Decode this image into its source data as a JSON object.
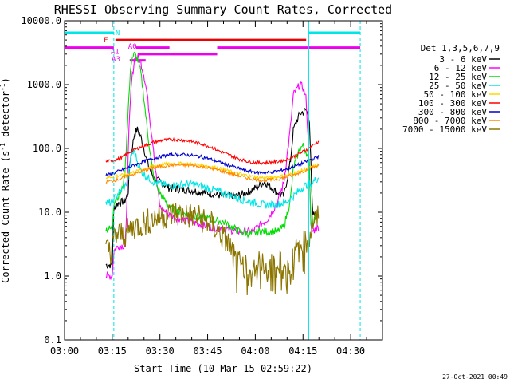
{
  "chart_data": {
    "type": "line",
    "title": "RHESSI Observing Summary Count Rates, Corrected",
    "xlabel": "Start Time (10-Mar-15 02:59:22)",
    "ylabel_parts": [
      "Corrected Count Rate (s",
      "-1",
      " detector",
      "-1",
      ")"
    ],
    "yscale": "log",
    "ylim": [
      0.1,
      10000
    ],
    "yticks": [
      {
        "value": 10000,
        "label": "10000.0"
      },
      {
        "value": 1000,
        "label": "1000.0"
      },
      {
        "value": 100,
        "label": "100.0"
      },
      {
        "value": 10,
        "label": "10.0"
      },
      {
        "value": 1,
        "label": "1.0"
      },
      {
        "value": 0.1,
        "label": "0.1"
      }
    ],
    "xlim_minutes": [
      0,
      100
    ],
    "xticks": [
      {
        "value": 0,
        "label": "03:00"
      },
      {
        "value": 15,
        "label": "03:15"
      },
      {
        "value": 30,
        "label": "03:30"
      },
      {
        "value": 45,
        "label": "03:45"
      },
      {
        "value": 60,
        "label": "04:00"
      },
      {
        "value": 75,
        "label": "04:15"
      },
      {
        "value": 90,
        "label": "04:30"
      }
    ],
    "legend_title": "Det 1,3,5,6,7,9",
    "legend_position": "right",
    "series": [
      {
        "name": "3 - 6 keV",
        "color": "#000000",
        "x": [
          13,
          15,
          15.5,
          17,
          19,
          20,
          20.5,
          22,
          23,
          24,
          25,
          26,
          28,
          30,
          33,
          36,
          40,
          45,
          50,
          54,
          57,
          60,
          63,
          66,
          69,
          71,
          72,
          74,
          76,
          77,
          78,
          80
        ],
        "values": [
          1.5,
          1.5,
          12,
          14,
          15,
          20,
          60,
          170,
          200,
          150,
          100,
          60,
          35,
          30,
          24,
          23,
          22,
          20,
          18,
          18,
          20,
          24,
          30,
          22,
          18,
          60,
          200,
          350,
          400,
          300,
          9,
          10
        ]
      },
      {
        "name": "6 - 12 keV",
        "color": "#ff00ff",
        "x": [
          13,
          15,
          15.5,
          17,
          19,
          19.5,
          20,
          21,
          22,
          23,
          24,
          25,
          26,
          27,
          28,
          29,
          30,
          33,
          36,
          40,
          45,
          50,
          55,
          59,
          61,
          64,
          67,
          69,
          71,
          72,
          74,
          75,
          76,
          77,
          77.5,
          78,
          80
        ],
        "values": [
          1,
          1,
          2.5,
          3,
          3,
          7,
          100,
          1000,
          2500,
          2700,
          2200,
          1400,
          700,
          250,
          100,
          30,
          12,
          9,
          8,
          7,
          6,
          5.5,
          5,
          5,
          6,
          8,
          14,
          30,
          200,
          700,
          1000,
          900,
          600,
          50,
          5,
          5,
          6
        ]
      },
      {
        "name": "12 - 25 keV",
        "color": "#00dd00",
        "x": [
          13,
          15,
          15.5,
          17,
          18,
          19,
          20,
          21,
          22,
          23,
          24,
          25,
          26,
          27,
          28,
          30,
          33,
          36,
          40,
          45,
          50,
          55,
          59,
          61,
          64,
          67,
          69,
          71,
          72,
          74,
          75,
          76,
          77,
          77.5,
          78,
          80
        ],
        "values": [
          5.5,
          5.5,
          15,
          18,
          22,
          40,
          400,
          2500,
          3000,
          2500,
          1500,
          600,
          200,
          80,
          35,
          20,
          12,
          10,
          9,
          8,
          7,
          5,
          4.5,
          5,
          5,
          5,
          6,
          15,
          50,
          100,
          110,
          90,
          60,
          6,
          7,
          10
        ]
      },
      {
        "name": "25 - 50 keV",
        "color": "#00e5e5",
        "x": [
          13,
          15,
          15.5,
          17,
          19,
          20,
          21,
          22,
          23,
          24,
          25,
          26,
          27,
          28,
          30,
          33,
          36,
          40,
          45,
          50,
          55,
          60,
          63,
          66,
          69,
          71,
          73,
          75,
          77,
          77.5,
          78,
          80
        ],
        "values": [
          14,
          14,
          16,
          20,
          25,
          35,
          80,
          90,
          60,
          45,
          40,
          35,
          33,
          30,
          28,
          26,
          27,
          28,
          24,
          20,
          16,
          14,
          13,
          13,
          14,
          16,
          20,
          25,
          28,
          25,
          30,
          35
        ]
      },
      {
        "name": "50 - 100 keV",
        "color": "#ffd700",
        "x": [
          13,
          15,
          16,
          18,
          20,
          22,
          25,
          28,
          31,
          34,
          37,
          40,
          43,
          46,
          49,
          52,
          55,
          58,
          61,
          64,
          67,
          70,
          73,
          76,
          80
        ],
        "values": [
          35,
          36,
          37,
          38,
          40,
          43,
          48,
          53,
          56,
          58,
          58,
          57,
          55,
          52,
          48,
          44,
          40,
          37,
          35,
          35,
          36,
          38,
          42,
          48,
          55
        ]
      },
      {
        "name": "100 - 300 keV",
        "color": "#ff0000",
        "x": [
          13,
          15,
          16,
          18,
          20,
          22,
          25,
          28,
          31,
          34,
          37,
          40,
          43,
          46,
          49,
          52,
          55,
          58,
          61,
          64,
          67,
          70,
          73,
          76,
          80
        ],
        "values": [
          62,
          64,
          66,
          72,
          85,
          95,
          110,
          125,
          135,
          138,
          135,
          128,
          118,
          105,
          90,
          78,
          68,
          62,
          60,
          60,
          62,
          67,
          78,
          95,
          130
        ]
      },
      {
        "name": "300 - 800 keV",
        "color": "#0000cc",
        "x": [
          13,
          15,
          16,
          18,
          20,
          22,
          25,
          28,
          31,
          34,
          37,
          40,
          43,
          46,
          49,
          52,
          55,
          58,
          61,
          64,
          67,
          70,
          73,
          76,
          80
        ],
        "values": [
          38,
          40,
          42,
          46,
          50,
          55,
          62,
          70,
          76,
          80,
          80,
          78,
          74,
          68,
          60,
          54,
          48,
          44,
          42,
          42,
          44,
          48,
          54,
          62,
          75
        ]
      },
      {
        "name": "800 - 7000 keV",
        "color": "#ff8800",
        "x": [
          13,
          15,
          16,
          18,
          20,
          22,
          25,
          28,
          31,
          34,
          37,
          40,
          43,
          46,
          49,
          52,
          55,
          58,
          61,
          64,
          67,
          70,
          73,
          76,
          80
        ],
        "values": [
          30,
          31,
          32,
          34,
          37,
          40,
          45,
          50,
          53,
          55,
          55,
          54,
          52,
          49,
          45,
          41,
          37,
          34,
          32,
          32,
          33,
          36,
          40,
          46,
          55
        ]
      },
      {
        "name": "7000 - 15000 keV",
        "color": "#8b7500",
        "x": [
          13,
          15,
          15.5,
          17,
          19,
          20,
          21,
          22,
          24,
          26,
          28,
          30,
          32,
          35,
          38,
          41,
          44,
          47,
          50,
          52,
          54,
          56,
          59,
          62,
          65,
          68,
          70,
          71,
          73,
          75,
          77,
          78,
          80
        ],
        "values": [
          2.5,
          2.5,
          4,
          4.5,
          4.5,
          5,
          5.5,
          6,
          6.5,
          7,
          8,
          8.5,
          9,
          9.5,
          9,
          8.5,
          7.5,
          6,
          4,
          3,
          1.5,
          1.5,
          1.5,
          1.5,
          1.5,
          1.5,
          1.5,
          1.8,
          2.5,
          3,
          4,
          7,
          8
        ]
      }
    ],
    "vlines": [
      {
        "x": 15.5,
        "color": "#00e5e5",
        "style": "dashed"
      },
      {
        "x": 76.8,
        "color": "#00e5e5",
        "style": "solid"
      },
      {
        "x": 93,
        "color": "#00e5e5",
        "style": "dashed"
      }
    ],
    "flag_bars": [
      {
        "label": "N",
        "color": "#00e5e5",
        "level": 6500,
        "segments": [
          [
            0,
            15.5
          ],
          [
            76.8,
            93
          ]
        ]
      },
      {
        "label": "F",
        "color": "#ee0000",
        "level": 5000,
        "segments": [
          [
            16,
            76
          ]
        ]
      },
      {
        "label": "A1",
        "color": "#ee00ee",
        "level": 3800,
        "segments": [
          [
            0,
            15.5
          ],
          [
            48,
            93
          ]
        ]
      },
      {
        "label": "A0",
        "color": "#ee00ee",
        "level": 3800,
        "segments": [
          [
            22.5,
            33
          ]
        ]
      },
      {
        "label": "",
        "color": "#ee00ee",
        "level": 3000,
        "segments": [
          [
            23,
            48
          ]
        ]
      },
      {
        "label": "A3",
        "color": "#ee00ee",
        "level": 2400,
        "segments": [
          [
            20.5,
            25.5
          ]
        ]
      }
    ],
    "flag_label_spots": [
      {
        "text": "N",
        "x": 16,
        "value": 6500
      },
      {
        "text": "F",
        "x": 12.3,
        "value": 5000
      },
      {
        "text": "A0",
        "x": 20,
        "value": 4000
      },
      {
        "text": "A1",
        "x": 14.5,
        "value": 3300
      },
      {
        "text": "A3",
        "x": 14.8,
        "value": 2500
      }
    ],
    "timestamp": "27-Oct-2021 00:49"
  }
}
